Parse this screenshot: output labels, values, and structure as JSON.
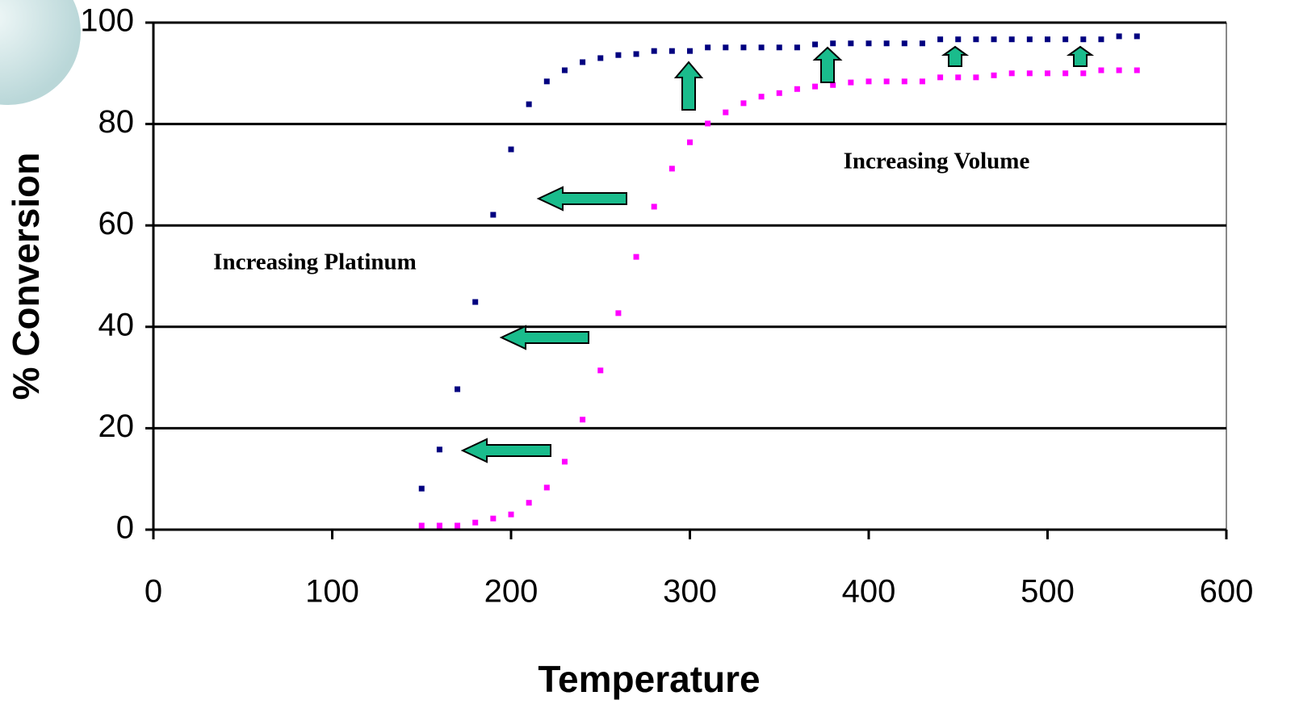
{
  "chart_data": {
    "type": "scatter",
    "x_label": "Temperature",
    "y_label": "% Conversion",
    "annotations": [
      "Increasing Volume",
      "Increasing Platinum"
    ],
    "x": [
      150,
      160,
      170,
      180,
      190,
      200,
      210,
      220,
      230,
      240,
      250,
      260,
      270,
      280,
      290,
      300,
      310,
      320,
      330,
      340,
      350,
      360,
      370,
      380,
      390,
      400,
      410,
      420,
      430,
      440,
      450,
      460,
      470,
      480,
      490,
      500,
      510,
      520,
      530,
      540,
      550
    ],
    "series": [
      {
        "color": "#000080",
        "values": [
          8.1,
          15.8,
          27.7,
          44.9,
          62.1,
          75.0,
          83.9,
          88.4,
          90.6,
          92.2,
          93.0,
          93.6,
          93.8,
          94.4,
          94.4,
          94.4,
          95.1,
          95.1,
          95.1,
          95.1,
          95.1,
          95.1,
          95.7,
          95.9,
          95.9,
          95.9,
          95.9,
          95.9,
          95.9,
          96.7,
          96.7,
          96.7,
          96.7,
          96.7,
          96.7,
          96.7,
          96.7,
          96.7,
          96.7,
          97.3,
          97.3
        ]
      },
      {
        "color": "#ff00ff",
        "values": [
          0.8,
          0.8,
          0.8,
          1.4,
          2.2,
          3.0,
          5.3,
          8.3,
          13.4,
          21.7,
          31.4,
          42.7,
          53.8,
          63.7,
          71.2,
          76.4,
          80.1,
          82.3,
          84.1,
          85.4,
          86.1,
          86.9,
          87.4,
          87.7,
          88.2,
          88.4,
          88.4,
          88.4,
          88.4,
          89.2,
          89.2,
          89.2,
          89.6,
          90.0,
          90.0,
          90.0,
          90.0,
          90.0,
          90.6,
          90.6,
          90.6
        ]
      }
    ],
    "xlim": [
      0,
      600
    ],
    "xticks": [
      0,
      100,
      200,
      300,
      400,
      500,
      600
    ],
    "ylim": [
      0,
      100
    ],
    "yticks": [
      0,
      20,
      40,
      60,
      80,
      100
    ],
    "grid": true
  }
}
